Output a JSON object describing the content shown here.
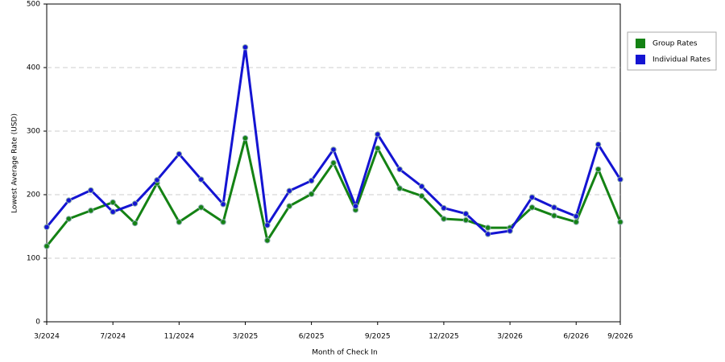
{
  "chart_data": {
    "type": "line",
    "x_label": "Month of Check In",
    "y_label": "Lowest Average Rate (USD)",
    "categories": [
      "3/2024",
      null,
      null,
      "7/2024",
      null,
      null,
      "11/2024",
      null,
      null,
      "3/2025",
      null,
      null,
      "6/2025",
      null,
      null,
      "9/2025",
      null,
      null,
      "12/2025",
      null,
      null,
      "3/2026",
      null,
      null,
      "6/2026",
      null,
      "9/2026"
    ],
    "series": [
      {
        "name": "Group Rates",
        "color": "#148214",
        "values": [
          119,
          162,
          175,
          188,
          155,
          218,
          157,
          180,
          157,
          289,
          128,
          182,
          201,
          250,
          176,
          273,
          210,
          198,
          162,
          160,
          148,
          148,
          180,
          167,
          157,
          240,
          157
        ]
      },
      {
        "name": "Individual Rates",
        "color": "#1414d2",
        "values": [
          149,
          191,
          207,
          173,
          186,
          223,
          264,
          224,
          185,
          432,
          152,
          206,
          222,
          271,
          182,
          295,
          240,
          213,
          179,
          170,
          138,
          143,
          196,
          180,
          166,
          279,
          224
        ]
      }
    ],
    "ylim": [
      0,
      500
    ],
    "yticks": [
      0,
      100,
      200,
      300,
      400,
      500
    ],
    "grid": true,
    "legend": "right"
  }
}
